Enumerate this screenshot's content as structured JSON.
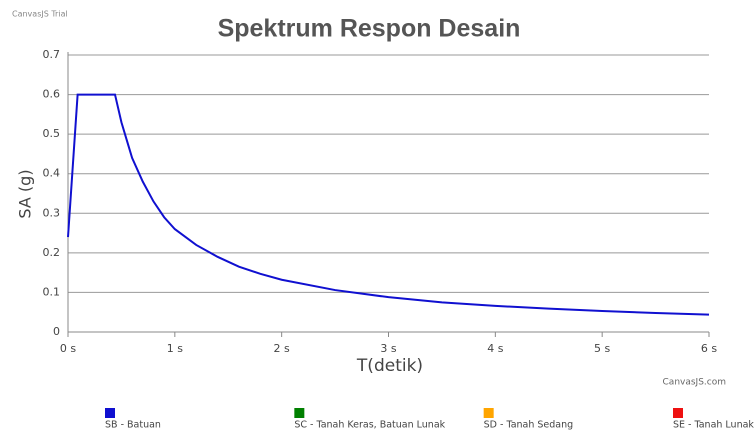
{
  "chart_data": {
    "type": "line",
    "title": "Spektrum Respon Desain",
    "credit": "CanvasJS Trial",
    "credit_link": "CanvasJS.com",
    "x_label": "T(detik)",
    "y_label": "SA (g)",
    "xlim": [
      0,
      6
    ],
    "xticks": [
      {
        "value": 0,
        "label": "0 s"
      },
      {
        "value": 1,
        "label": "1 s"
      },
      {
        "value": 2,
        "label": "2 s"
      },
      {
        "value": 3,
        "label": "3 s"
      },
      {
        "value": 4,
        "label": "4 s"
      },
      {
        "value": 5,
        "label": "5 s"
      },
      {
        "value": 6,
        "label": "6 s"
      }
    ],
    "ylim": [
      0,
      0.7
    ],
    "yticks": [
      0,
      0.1,
      0.2,
      0.3,
      0.4,
      0.5,
      0.6,
      0.7
    ],
    "grid": true,
    "legend": "bottom",
    "series": [
      {
        "name": "SB - Batuan",
        "color": "#1010d0",
        "x": [
          0,
          0.09,
          0.44,
          0.5,
          0.6,
          0.7,
          0.8,
          0.9,
          1.0,
          1.2,
          1.4,
          1.6,
          1.8,
          2,
          2.5,
          3,
          3.5,
          4,
          4.5,
          5,
          5.5,
          6
        ],
        "values": [
          0.24,
          0.6,
          0.6,
          0.53,
          0.44,
          0.38,
          0.33,
          0.29,
          0.26,
          0.22,
          0.19,
          0.165,
          0.147,
          0.132,
          0.106,
          0.088,
          0.075,
          0.066,
          0.059,
          0.053,
          0.048,
          0.044
        ]
      },
      {
        "name": "SC - Tanah Keras, Batuan Lunak",
        "color": "#008000",
        "x": [],
        "values": []
      },
      {
        "name": "SD - Tanah Sedang",
        "color": "#ffa500",
        "x": [],
        "values": []
      },
      {
        "name": "SE - Tanah Lunak",
        "color": "#ee1111",
        "x": [],
        "values": []
      }
    ]
  }
}
